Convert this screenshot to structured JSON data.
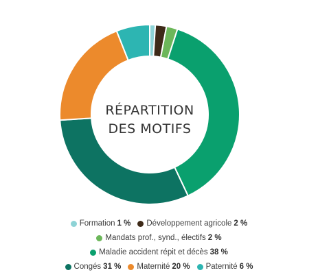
{
  "chart_data": {
    "type": "pie",
    "donut": true,
    "center_title_lines": [
      "RÉPARTITION",
      "DES MOTIFS"
    ],
    "unit": "%",
    "legend_placement": "bottom",
    "slices": [
      {
        "label": "Formation",
        "value": 1,
        "color": "#8ed3d6"
      },
      {
        "label": "Développement agricole",
        "value": 2,
        "color": "#3e2a18"
      },
      {
        "label": "Mandats prof., synd., électifs",
        "value": 2,
        "color": "#6cb75a"
      },
      {
        "label": "Maladie accident répit et décès",
        "value": 38,
        "color": "#0aa06e"
      },
      {
        "label": "Congés",
        "value": 31,
        "color": "#0d7362"
      },
      {
        "label": "Maternité",
        "value": 20,
        "color": "#ec8a2c"
      },
      {
        "label": "Paternité",
        "value": 6,
        "color": "#2db5b2"
      }
    ]
  }
}
